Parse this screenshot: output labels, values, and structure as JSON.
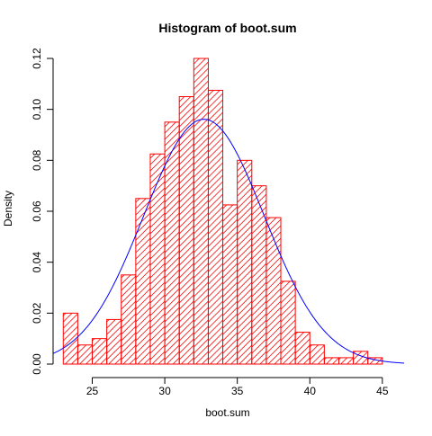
{
  "chart_data": {
    "type": "bar",
    "title": "Histogram of boot.sum",
    "xlabel": "boot.sum",
    "ylabel": "Density",
    "xlim": [
      22.3,
      46.5
    ],
    "ylim": [
      0,
      0.12
    ],
    "x_ticks": [
      25,
      30,
      35,
      40,
      45
    ],
    "y_ticks": [
      0.0,
      0.02,
      0.04,
      0.06,
      0.08,
      0.1,
      0.12
    ],
    "y_tick_labels": [
      "0.00",
      "0.02",
      "0.04",
      "0.06",
      "0.08",
      "0.10",
      "0.12"
    ],
    "bins": [
      {
        "start": 23,
        "end": 24,
        "density": 0.02
      },
      {
        "start": 24,
        "end": 25,
        "density": 0.0075
      },
      {
        "start": 25,
        "end": 26,
        "density": 0.01
      },
      {
        "start": 26,
        "end": 27,
        "density": 0.0175
      },
      {
        "start": 27,
        "end": 28,
        "density": 0.035
      },
      {
        "start": 28,
        "end": 29,
        "density": 0.065
      },
      {
        "start": 29,
        "end": 30,
        "density": 0.0825
      },
      {
        "start": 30,
        "end": 31,
        "density": 0.095
      },
      {
        "start": 31,
        "end": 32,
        "density": 0.105
      },
      {
        "start": 32,
        "end": 33,
        "density": 0.12
      },
      {
        "start": 33,
        "end": 34,
        "density": 0.1075
      },
      {
        "start": 34,
        "end": 35,
        "density": 0.0625
      },
      {
        "start": 35,
        "end": 36,
        "density": 0.08
      },
      {
        "start": 36,
        "end": 37,
        "density": 0.07
      },
      {
        "start": 37,
        "end": 38,
        "density": 0.0575
      },
      {
        "start": 38,
        "end": 39,
        "density": 0.0325
      },
      {
        "start": 39,
        "end": 40,
        "density": 0.0125
      },
      {
        "start": 40,
        "end": 41,
        "density": 0.0075
      },
      {
        "start": 41,
        "end": 42,
        "density": 0.0025
      },
      {
        "start": 42,
        "end": 43,
        "density": 0.0025
      },
      {
        "start": 43,
        "end": 44,
        "density": 0.005
      },
      {
        "start": 44,
        "end": 45,
        "density": 0.0025
      }
    ],
    "density_curve": {
      "type": "normal",
      "mean": 32.7,
      "sd": 4.15
    },
    "colors": {
      "bars": "#ff0000",
      "curve": "#0000ff",
      "axes": "#000000"
    },
    "bar_fill": "hatched"
  }
}
